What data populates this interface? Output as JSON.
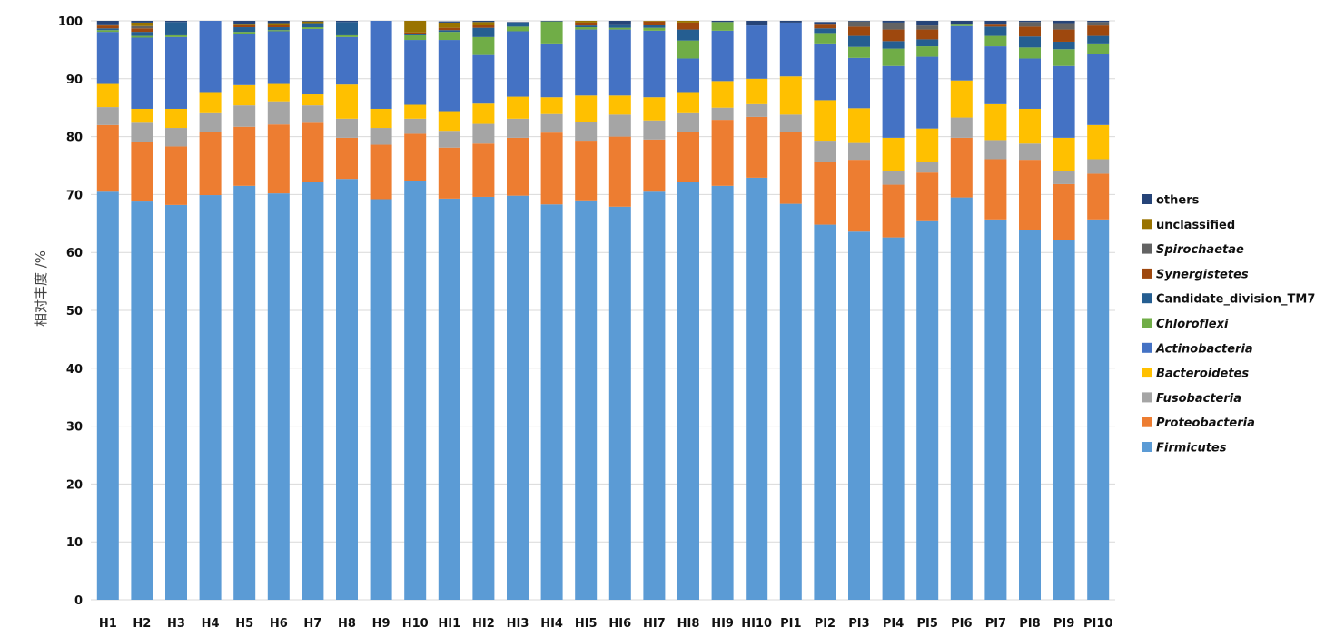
{
  "chart_data": {
    "type": "bar",
    "stacked": true,
    "ylabel": "相对丰度 /%",
    "ylim": [
      0,
      100
    ],
    "yticks": [
      "0",
      "10",
      "20",
      "30",
      "40",
      "50",
      "60",
      "70",
      "80",
      "90",
      "100"
    ],
    "grid": "horizontal",
    "legend_position": "right",
    "categories": [
      "H1",
      "H2",
      "H3",
      "H4",
      "H5",
      "H6",
      "H7",
      "H8",
      "H9",
      "H10",
      "HI1",
      "HI2",
      "HI3",
      "HI4",
      "HI5",
      "HI6",
      "HI7",
      "HI8",
      "HI9",
      "HI10",
      "PI1",
      "PI2",
      "PI3",
      "PI4",
      "PI5",
      "PI6",
      "PI7",
      "PI8",
      "PI9",
      "PI10"
    ],
    "series": [
      {
        "name": "Firmicutes",
        "color": "#5B9BD5",
        "italic": true,
        "values": [
          70.5,
          68.8,
          68.2,
          69.9,
          71.5,
          70.2,
          72.1,
          72.7,
          69.2,
          72.3,
          69.3,
          69.6,
          69.8,
          68.3,
          69.0,
          67.9,
          70.5,
          72.1,
          71.5,
          72.9,
          68.4,
          64.8,
          63.6,
          62.6,
          65.4,
          69.5,
          65.7,
          63.9,
          62.1,
          65.7
        ]
      },
      {
        "name": "Proteobacteria",
        "color": "#ED7D31",
        "italic": true,
        "values": [
          11.5,
          10.2,
          10.1,
          10.9,
          10.2,
          11.9,
          10.3,
          7.1,
          9.4,
          8.2,
          8.8,
          9.2,
          10.0,
          12.4,
          10.3,
          12.1,
          9.0,
          8.7,
          11.4,
          10.5,
          12.4,
          10.9,
          12.4,
          9.1,
          8.4,
          10.3,
          10.4,
          12.1,
          9.7,
          7.9
        ]
      },
      {
        "name": "Fusobacteria",
        "color": "#A5A5A5",
        "italic": true,
        "values": [
          3.1,
          3.4,
          3.2,
          3.4,
          3.7,
          4.0,
          3.0,
          3.3,
          2.9,
          2.6,
          2.9,
          3.4,
          3.3,
          3.2,
          3.2,
          3.8,
          3.3,
          3.4,
          2.1,
          2.2,
          3.0,
          3.6,
          2.9,
          2.4,
          1.8,
          3.5,
          3.3,
          2.8,
          2.3,
          2.5
        ]
      },
      {
        "name": "Bacteroidetes",
        "color": "#FFC000",
        "italic": true,
        "values": [
          4.0,
          2.4,
          3.3,
          3.5,
          3.5,
          3.0,
          1.9,
          5.9,
          3.3,
          2.4,
          3.4,
          3.5,
          3.8,
          2.9,
          4.6,
          3.3,
          4.0,
          3.5,
          4.6,
          4.4,
          6.6,
          7.0,
          6.0,
          5.7,
          5.8,
          6.4,
          6.2,
          6.0,
          5.7,
          5.9
        ]
      },
      {
        "name": "Actinobacteria",
        "color": "#4472C4",
        "italic": true,
        "values": [
          9.0,
          12.3,
          12.4,
          12.3,
          8.9,
          9.1,
          11.3,
          8.2,
          15.2,
          11.2,
          12.3,
          8.4,
          11.3,
          9.3,
          11.4,
          11.4,
          11.5,
          5.8,
          8.7,
          9.2,
          9.3,
          9.8,
          8.7,
          12.4,
          12.4,
          9.4,
          10.0,
          8.7,
          12.4,
          12.3
        ]
      },
      {
        "name": "Chloroflexi",
        "color": "#70AD47",
        "italic": true,
        "values": [
          0.3,
          0.3,
          0.3,
          0,
          0.3,
          0.2,
          0.3,
          0.3,
          0,
          0.8,
          1.4,
          3.1,
          0.8,
          3.8,
          0.4,
          0.3,
          0.5,
          3.1,
          1.5,
          0,
          0,
          1.8,
          1.9,
          3.0,
          1.8,
          0.4,
          1.8,
          1.9,
          2.9,
          1.8
        ]
      },
      {
        "name": "Candidate_division_TM7",
        "color": "#255E91",
        "italic": false,
        "values": [
          0.3,
          0.7,
          2.3,
          0,
          0.8,
          0.5,
          0.7,
          2.3,
          0,
          0.3,
          0.3,
          1.6,
          0.7,
          0,
          0.3,
          0.6,
          0.5,
          1.9,
          0,
          0,
          0,
          0.8,
          1.9,
          1.3,
          1.2,
          0,
          1.6,
          1.9,
          1.3,
          1.3
        ]
      },
      {
        "name": "Synergistetes",
        "color": "#9E480E",
        "italic": true,
        "values": [
          0.5,
          0.6,
          0,
          0,
          0.4,
          0.4,
          0,
          0,
          0,
          0.2,
          0.4,
          0.5,
          0,
          0,
          0.5,
          0,
          0.6,
          1.2,
          0,
          0,
          0,
          0.8,
          1.6,
          2.0,
          1.7,
          0,
          0.5,
          1.7,
          2.1,
          1.8
        ]
      },
      {
        "name": "Spirochaetae",
        "color": "#636363",
        "italic": true,
        "values": [
          0,
          0.4,
          0,
          0,
          0,
          0,
          0,
          0,
          0,
          0,
          0,
          0,
          0,
          0,
          0,
          0,
          0,
          0,
          0,
          0,
          0,
          0,
          0.9,
          1.2,
          0.7,
          0,
          0,
          0.8,
          1.1,
          0.6
        ]
      },
      {
        "name": "unclassified",
        "color": "#997300",
        "italic": false,
        "values": [
          0.2,
          0.6,
          0,
          0,
          0.2,
          0.3,
          0.3,
          0,
          0,
          2.0,
          0.9,
          0.5,
          0,
          0,
          0.3,
          0,
          0.5,
          0.5,
          0,
          0,
          0,
          0,
          0,
          0,
          0,
          0,
          0,
          0,
          0,
          0
        ]
      },
      {
        "name": "others",
        "color": "#264478",
        "italic": false,
        "values": [
          0.6,
          0.3,
          0.2,
          0,
          0.5,
          0.4,
          0.1,
          0.2,
          0,
          0,
          0.2,
          0.2,
          0.1,
          0.1,
          0,
          0.6,
          0.1,
          0.3,
          0.2,
          0.8,
          0.3,
          0.3,
          0.1,
          0.3,
          0.8,
          0.5,
          0.5,
          0.2,
          0.4,
          0.2
        ]
      }
    ],
    "legend_order": [
      "others",
      "unclassified",
      "Spirochaetae",
      "Synergistetes",
      "Candidate_division_TM7",
      "Chloroflexi",
      "Actinobacteria",
      "Bacteroidetes",
      "Fusobacteria",
      "Proteobacteria",
      "Firmicutes"
    ]
  }
}
